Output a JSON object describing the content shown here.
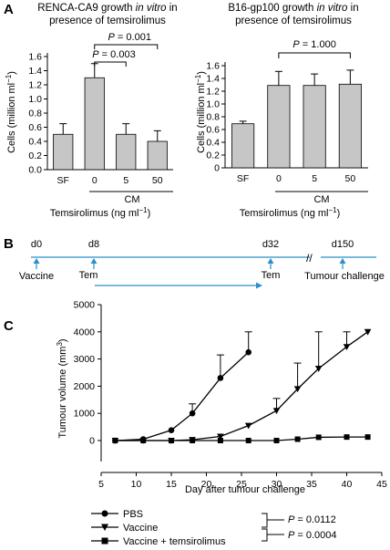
{
  "panels": {
    "A": {
      "letter": "A"
    },
    "B": {
      "letter": "B"
    },
    "C": {
      "letter": "C"
    }
  },
  "chart_data": [
    {
      "type": "bar",
      "title": "RENCA-CA9 growth in vitro in presence of temsirolimus",
      "title_parts": [
        "RENCA-CA9 growth ",
        "in vitro",
        " in",
        "presence of temsirolimus"
      ],
      "ylabel": "Cells (million ml⁻¹)",
      "ylabel_parts": [
        "Cells (million ml",
        "−1",
        ")"
      ],
      "xlabel": "Temsirolimus (ng ml⁻¹)",
      "xlabel_parts": [
        "Temsirolimus (ng ml",
        "−1",
        ")"
      ],
      "group_label": "CM",
      "categories": [
        "SF",
        "0",
        "5",
        "50"
      ],
      "values": [
        0.5,
        1.3,
        0.5,
        0.4
      ],
      "errors": [
        0.15,
        0.2,
        0.15,
        0.15
      ],
      "ylim": [
        0,
        1.6
      ],
      "yticks": [
        "0.0",
        "0.2",
        "0.4",
        "0.6",
        "0.8",
        "1.0",
        "1.2",
        "1.4",
        "1.6"
      ],
      "annotations": [
        {
          "text": "P = 0.003",
          "from": 1,
          "to": 2
        },
        {
          "text": "P = 0.001",
          "from": 1,
          "to": 3
        }
      ]
    },
    {
      "type": "bar",
      "title": "B16-gp100 growth in vitro in presence of temsirolimus",
      "title_parts": [
        "B16-gp100 growth ",
        "in vitro",
        " in",
        "presence of temsirolimus"
      ],
      "ylabel": "Cells (million ml⁻¹)",
      "ylabel_parts": [
        "Cells (million ml",
        "−1",
        ")"
      ],
      "xlabel": "Temsirolimus (ng ml⁻¹)",
      "xlabel_parts": [
        "Temsirolimus (ng ml",
        "−1",
        ")"
      ],
      "group_label": "CM",
      "categories": [
        "SF",
        "0",
        "5",
        "50"
      ],
      "values": [
        0.69,
        1.29,
        1.29,
        1.31
      ],
      "errors": [
        0.04,
        0.22,
        0.18,
        0.22
      ],
      "ylim": [
        0,
        1.6
      ],
      "yticks": [
        "0",
        "0.2",
        "0.4",
        "0.6",
        "0.8",
        "1.0",
        "1.2",
        "1.4",
        "1.6"
      ],
      "annotations": [
        {
          "text": "P = 1.000",
          "from": 1,
          "to": 3
        }
      ]
    },
    {
      "type": "line",
      "ylabel": "Tumour volume (mm³)",
      "ylabel_parts": [
        "Tumour volume (mm",
        "3",
        ")"
      ],
      "xlabel": "Day after tumour challenge",
      "xlim": [
        5,
        45
      ],
      "ylim": [
        0,
        5000
      ],
      "xticks": [
        "5",
        "10",
        "15",
        "20",
        "25",
        "30",
        "35",
        "40",
        "45"
      ],
      "yticks": [
        "0",
        "1000",
        "2000",
        "3000",
        "4000",
        "5000"
      ],
      "series": [
        {
          "name": "PBS",
          "marker": "circle",
          "x": [
            7,
            11,
            15,
            18,
            22,
            26
          ],
          "y": [
            0,
            50,
            380,
            1000,
            2300,
            3250
          ],
          "err": [
            0,
            0,
            0,
            350,
            850,
            750
          ]
        },
        {
          "name": "Vaccine",
          "marker": "triangle-down",
          "x": [
            7,
            11,
            15,
            18,
            22,
            26,
            30,
            33,
            36,
            40,
            43
          ],
          "y": [
            0,
            0,
            0,
            30,
            150,
            550,
            1100,
            1900,
            2650,
            3450,
            4000
          ],
          "err": [
            0,
            0,
            0,
            0,
            0,
            0,
            450,
            950,
            1350,
            550,
            0
          ]
        },
        {
          "name": "Vaccine + temsirolimus",
          "marker": "square",
          "x": [
            7,
            11,
            15,
            18,
            22,
            26,
            30,
            33,
            36,
            40,
            43
          ],
          "y": [
            0,
            0,
            0,
            0,
            0,
            0,
            0,
            50,
            120,
            130,
            130
          ],
          "err": [
            0,
            0,
            0,
            0,
            0,
            0,
            0,
            0,
            0,
            0,
            0
          ]
        }
      ],
      "stats": [
        {
          "text": "P = 0.0112",
          "compare": [
            "PBS",
            "Vaccine"
          ]
        },
        {
          "text": "P = 0.0004",
          "compare": [
            "Vaccine",
            "Vaccine + temsirolimus"
          ]
        }
      ]
    }
  ],
  "timeline": {
    "days": [
      "d0",
      "d8",
      "d32",
      "d150"
    ],
    "events": [
      "Vaccine",
      "Tem",
      "Tem",
      "Tumour challenge"
    ],
    "break_mark": "//"
  },
  "colors": {
    "timeline": "#2b8fc9",
    "bar_fill": "#c6c6c6"
  }
}
